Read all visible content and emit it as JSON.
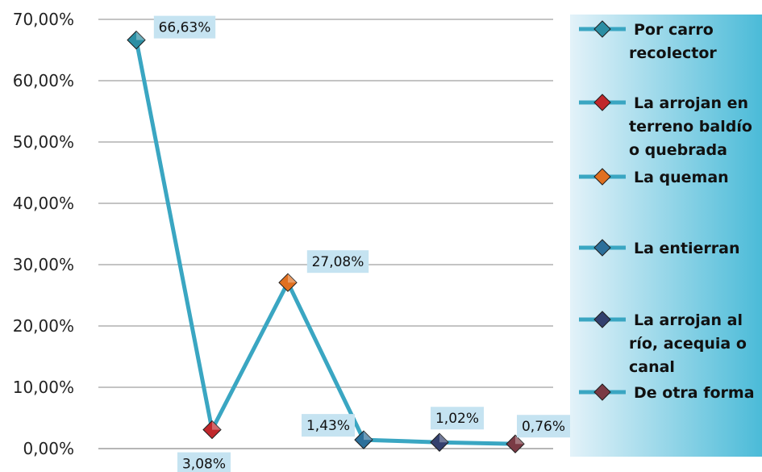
{
  "chart_data": {
    "type": "line",
    "title": "",
    "xlabel": "",
    "ylabel": "",
    "ylim": [
      0,
      70
    ],
    "yticks": [
      "0,00%",
      "10,00%",
      "20,00%",
      "30,00%",
      "40,00%",
      "50,00%",
      "60,00%",
      "70,00%"
    ],
    "grid": true,
    "legend_position": "right",
    "categories": [
      "Por carro recolector",
      "La arrojan en terreno baldío o quebrada",
      "La queman",
      "La entierran",
      "La arrojan al río, acequia o canal",
      "De otra forma"
    ],
    "values": [
      66.63,
      3.08,
      27.08,
      1.43,
      1.02,
      0.76
    ],
    "data_labels": [
      "66,63%",
      "3,08%",
      "27,08%",
      "1,43%",
      "1,02%",
      "0,76%"
    ],
    "legend": [
      {
        "lines": [
          "Por carro",
          "recolector"
        ],
        "color": "#2b8ea3"
      },
      {
        "lines": [
          "La arrojan en",
          "terreno baldío",
          "o quebrada"
        ],
        "color": "#c0282c"
      },
      {
        "lines": [
          "La queman"
        ],
        "color": "#e07020"
      },
      {
        "lines": [
          "La entierran"
        ],
        "color": "#2c6f9a"
      },
      {
        "lines": [
          "La arrojan al",
          "río, acequia o",
          "canal"
        ],
        "color": "#33406e"
      },
      {
        "lines": [
          "De otra forma"
        ],
        "color": "#7a3a44"
      }
    ],
    "colors": {
      "line": "#3aa6c2",
      "gridline": "#8a8a8a",
      "label_bg": "#c5e3f1",
      "legend_bg_light": "#e3f2f9",
      "legend_bg_dark": "#4bbbd8"
    }
  }
}
